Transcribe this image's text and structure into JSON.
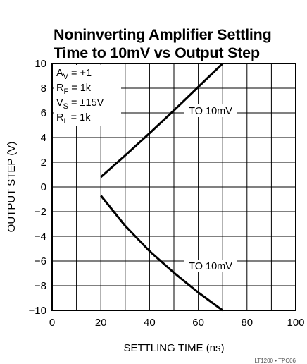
{
  "chart_data": {
    "type": "line",
    "title": "Noninverting Amplifier Settling Time to 10mV vs Output Step",
    "title_lines": [
      "Noninverting Amplifier Settling",
      "Time to 10mV vs Output Step"
    ],
    "xlabel": "SETTLING TIME (ns)",
    "ylabel": "OUTPUT STEP (V)",
    "xlim": [
      0,
      100
    ],
    "ylim": [
      -10,
      10
    ],
    "x_ticks": [
      0,
      20,
      40,
      60,
      80,
      100
    ],
    "y_ticks": [
      10,
      8,
      6,
      4,
      2,
      0,
      -2,
      -4,
      -6,
      -8,
      -10
    ],
    "y_tick_labels": [
      "10",
      "8",
      "6",
      "4",
      "2",
      "0",
      "−2",
      "−4",
      "−6",
      "−8",
      "−10"
    ],
    "grid": true,
    "conditions": [
      {
        "main": "A",
        "sub": "V",
        "rest": " = +1"
      },
      {
        "main": "R",
        "sub": "F",
        "rest": " = 1k"
      },
      {
        "main": "V",
        "sub": "S",
        "rest": " = ±15V"
      },
      {
        "main": "R",
        "sub": "L",
        "rest": " = 1k"
      }
    ],
    "series": [
      {
        "label": "TO 10mV",
        "x": [
          20,
          30,
          40,
          50,
          60,
          70
        ],
        "y": [
          0.8,
          2.55,
          4.35,
          6.2,
          8.1,
          10
        ]
      },
      {
        "label": "TO 10mV",
        "x": [
          20,
          30,
          40,
          50,
          60,
          70
        ],
        "y": [
          -0.7,
          -3.15,
          -5.2,
          -6.95,
          -8.55,
          -10
        ]
      }
    ],
    "footer": "LT1200 • TPC06"
  }
}
